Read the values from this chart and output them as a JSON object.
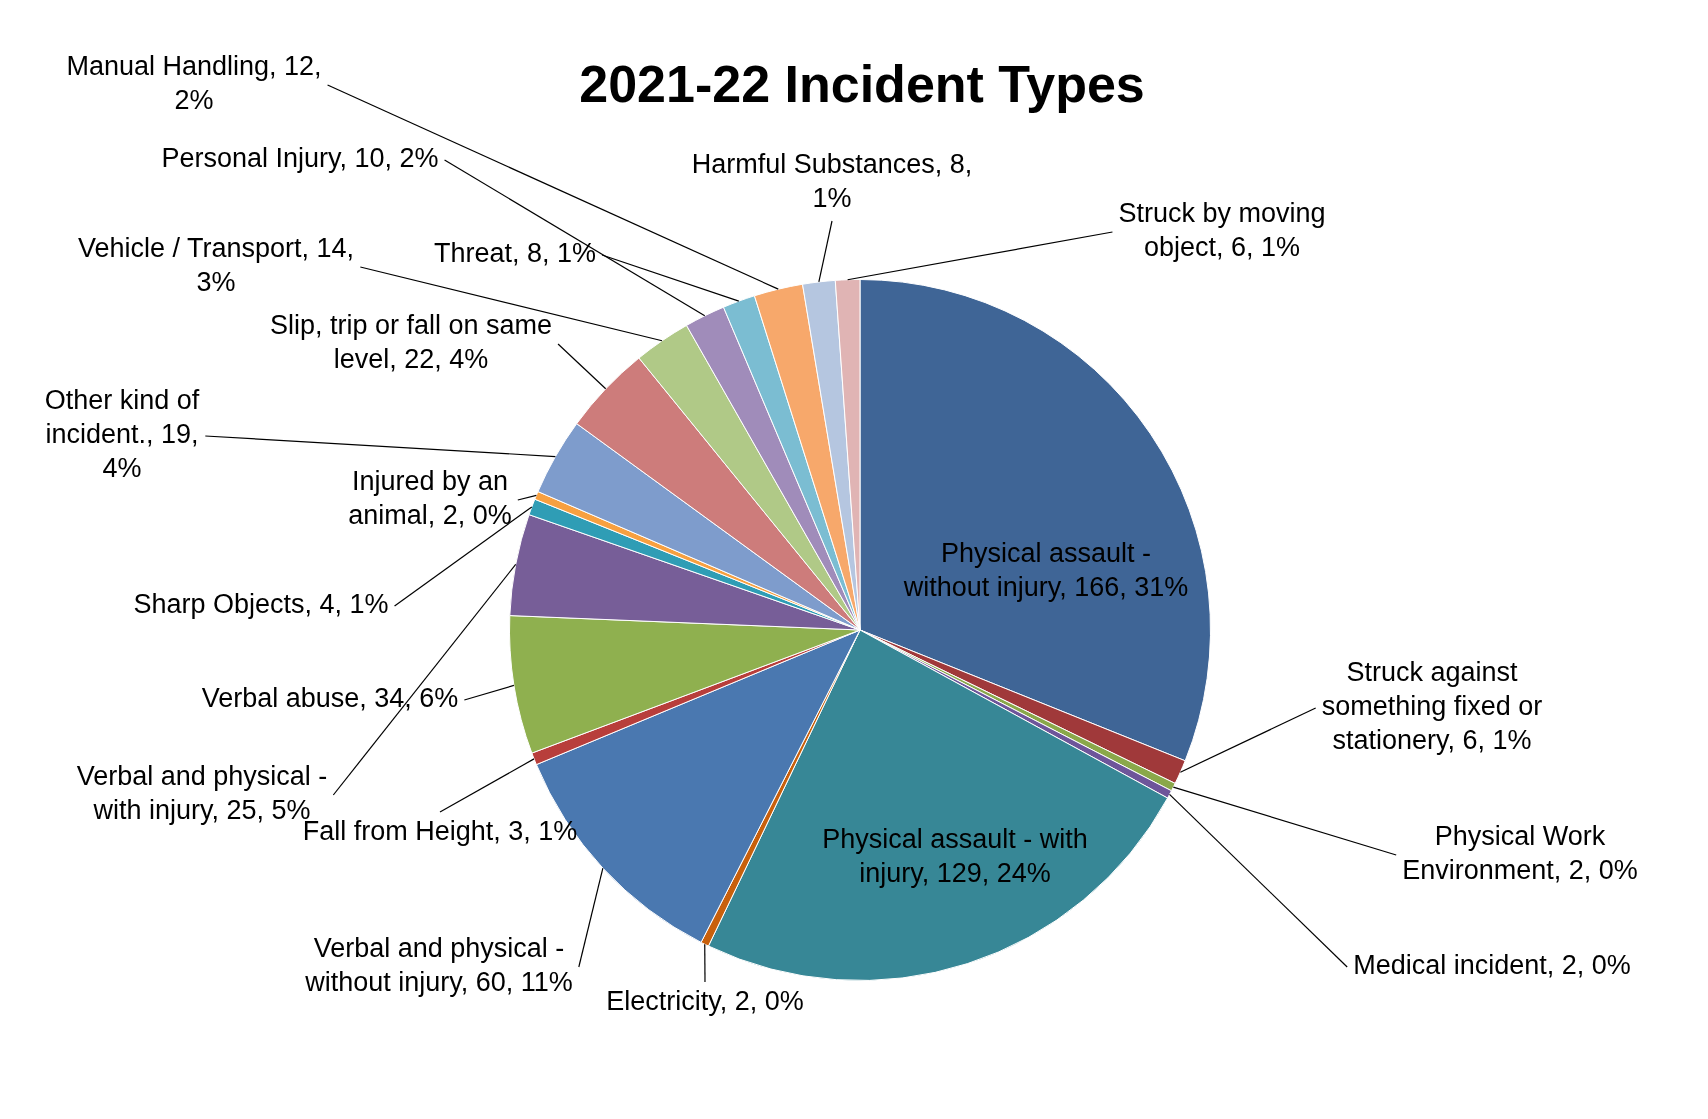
{
  "chart_data": {
    "type": "pie",
    "title": "2021-22 Incident Types",
    "categories": [
      "Physical assault - without injury",
      "Struck against something fixed or stationery",
      "Physical Work Environment",
      "Medical incident",
      "Physical assault - with injury",
      "Electricity",
      "Verbal and physical - without injury",
      "Fall from Height",
      "Verbal abuse",
      "Verbal and physical - with injury",
      "Sharp Objects",
      "Injured by an animal",
      "Other kind of incident.",
      "Slip, trip or fall on same level",
      "Vehicle / Transport",
      "Personal Injury",
      "Threat",
      "Manual Handling",
      "Harmful Substances",
      "Struck by moving object"
    ],
    "values": [
      166,
      6,
      2,
      2,
      129,
      2,
      60,
      3,
      34,
      25,
      4,
      2,
      19,
      22,
      14,
      10,
      8,
      12,
      8,
      6
    ],
    "value_labels": [
      "166, 31%",
      "6, 1%",
      "2, 0%",
      "2, 0%",
      "129, 24%",
      "2, 0%",
      "60, 11%",
      "3, 1%",
      "34, 6%",
      "25, 5%",
      "4, 1%",
      "2, 0%",
      "19, 4%",
      "22, 4%",
      "14, 3%",
      "10, 2%",
      "8, 1%",
      "12, 2%",
      "8, 1%",
      "6, 1%"
    ],
    "colors": [
      "#3f6596",
      "#a0393a",
      "#8aa84a",
      "#6e559a",
      "#378796",
      "#c8600c",
      "#4a78b0",
      "#b83e3b",
      "#8fb04f",
      "#775e98",
      "#2f9db5",
      "#f7a040",
      "#7e9ccc",
      "#cd7c7b",
      "#b0c987",
      "#a08cba",
      "#7bbdd2",
      "#f7a86b",
      "#b5c6e0",
      "#e0b4b4"
    ],
    "legend": false
  }
}
